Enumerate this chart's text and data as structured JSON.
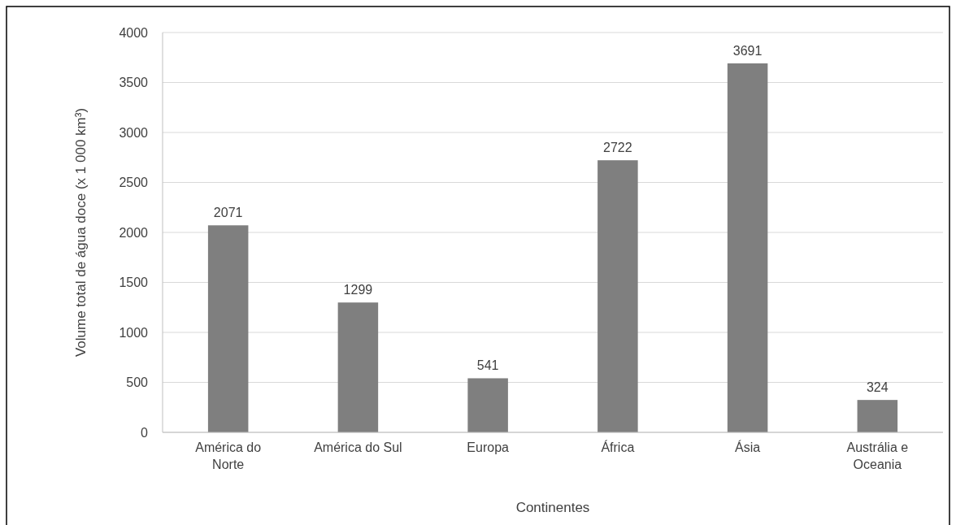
{
  "chart_data": {
    "type": "bar",
    "xlabel": "Continentes",
    "ylabel": "Volume total de água doce (x 1 000 km³)",
    "categories": [
      "América do Norte",
      "América do Sul",
      "Europa",
      "África",
      "Ásia",
      "Austrália e Oceania"
    ],
    "values": [
      2071,
      1299,
      541,
      2722,
      3691,
      324
    ],
    "color": "#7f7f7f",
    "ylim": [
      0,
      4000
    ],
    "yticks": [
      0,
      500,
      1000,
      1500,
      2000,
      2500,
      3000,
      3500,
      4000
    ],
    "grid": "y",
    "data_labels": true
  }
}
